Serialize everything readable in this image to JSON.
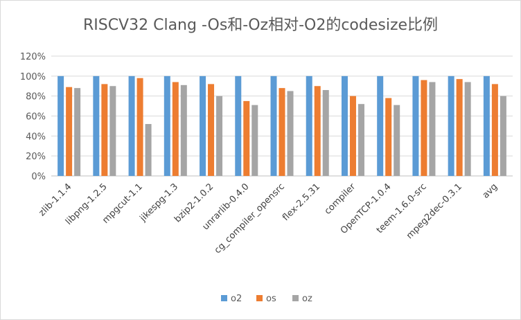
{
  "chart_data": {
    "type": "bar",
    "title": "RISCV32 Clang -Os和-Oz相对-O2的codesize比例",
    "xlabel": "",
    "ylabel": "",
    "ylim": [
      0,
      120
    ],
    "yticks": [
      "0%",
      "20%",
      "40%",
      "60%",
      "80%",
      "100%",
      "120%"
    ],
    "grid": true,
    "legend_position": "bottom",
    "categories": [
      "zlib-1.1.4",
      "libpng-1.2.5",
      "mpgcut-1.1",
      "jikespg-1.3",
      "bzip2-1.0.2",
      "unrarlib-0.4.0",
      "cg_compiler_opensrc",
      "flex-2.5.31",
      "compiler",
      "OpenTCP-1.0.4",
      "teem-1.6.0-src",
      "mpeg2dec-0.3.1",
      "avg"
    ],
    "series": [
      {
        "name": "o2",
        "color": "#5b9bd5",
        "values": [
          100,
          100,
          100,
          100,
          100,
          100,
          100,
          100,
          100,
          100,
          100,
          100,
          100
        ]
      },
      {
        "name": "os",
        "color": "#ed7d31",
        "values": [
          89,
          92,
          98,
          94,
          92,
          75,
          88,
          90,
          80,
          78,
          96,
          97,
          92
        ]
      },
      {
        "name": "oz",
        "color": "#a5a5a5",
        "values": [
          88,
          90,
          52,
          91,
          80,
          71,
          85,
          86,
          72,
          71,
          94,
          94,
          80
        ]
      }
    ]
  }
}
